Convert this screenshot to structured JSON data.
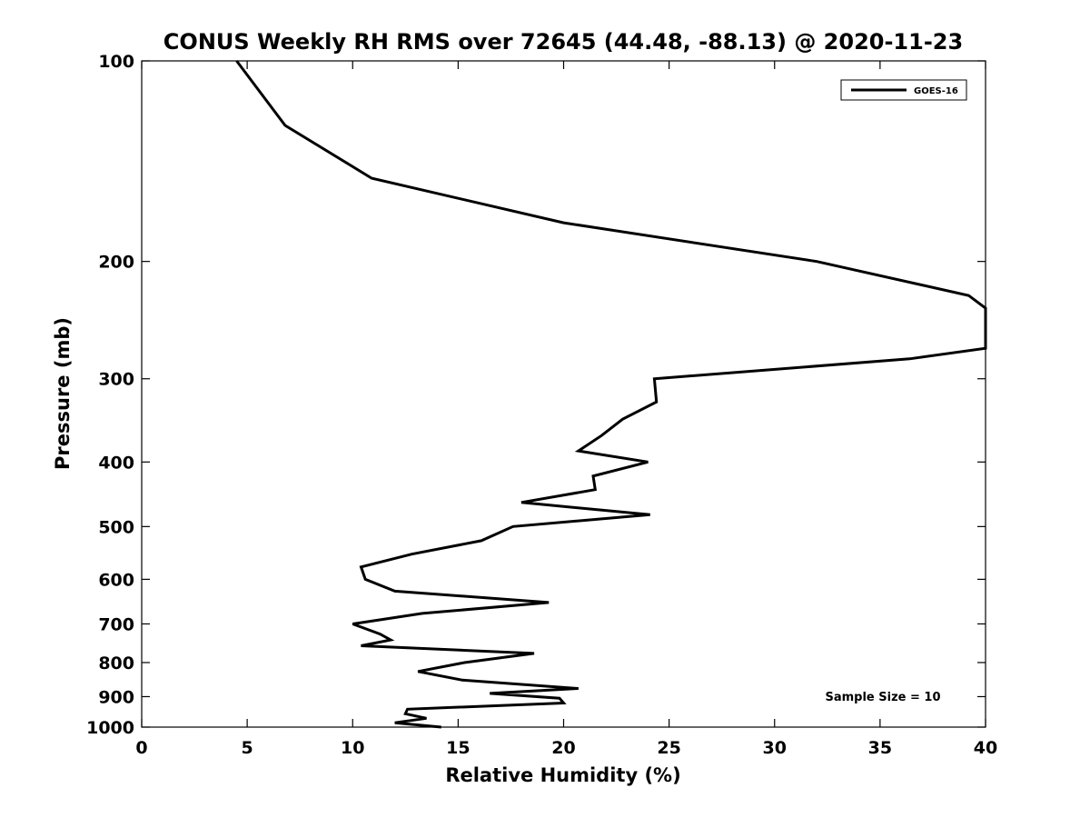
{
  "chart_data": {
    "type": "line",
    "title": "CONUS Weekly RH RMS over 72645 (44.48, -88.13) @ 2020-11-23",
    "xlabel": "Relative Humidity (%)",
    "ylabel": "Pressure (mb)",
    "xlim": [
      0,
      40
    ],
    "ylim": [
      1000,
      100
    ],
    "y_scale": "log",
    "y_reversed": true,
    "grid": false,
    "legend_position": "top-right",
    "x_ticks": [
      "0",
      "5",
      "10",
      "15",
      "20",
      "25",
      "30",
      "35",
      "40"
    ],
    "y_ticks": [
      "100",
      "200",
      "300",
      "400",
      "500",
      "600",
      "700",
      "800",
      "900",
      "1000"
    ],
    "series": [
      {
        "name": "GOES-16",
        "color": "#000000",
        "points": [
          [
            4.5,
            100
          ],
          [
            6.8,
            125
          ],
          [
            10.9,
            150
          ],
          [
            20.0,
            175
          ],
          [
            32.0,
            200
          ],
          [
            39.2,
            225
          ],
          [
            40.0,
            235
          ],
          [
            40.0,
            270
          ],
          [
            36.4,
            280
          ],
          [
            24.3,
            300
          ],
          [
            24.4,
            325
          ],
          [
            22.8,
            345
          ],
          [
            21.8,
            365
          ],
          [
            20.7,
            385
          ],
          [
            24.0,
            400
          ],
          [
            21.4,
            420
          ],
          [
            21.5,
            440
          ],
          [
            18.0,
            460
          ],
          [
            24.1,
            480
          ],
          [
            17.6,
            500
          ],
          [
            16.1,
            525
          ],
          [
            12.8,
            550
          ],
          [
            10.4,
            575
          ],
          [
            10.6,
            600
          ],
          [
            12.0,
            625
          ],
          [
            19.3,
            650
          ],
          [
            13.3,
            675
          ],
          [
            10.0,
            700
          ],
          [
            11.3,
            725
          ],
          [
            11.8,
            740
          ],
          [
            10.4,
            755
          ],
          [
            18.6,
            775
          ],
          [
            15.3,
            800
          ],
          [
            13.1,
            825
          ],
          [
            15.2,
            850
          ],
          [
            20.7,
            875
          ],
          [
            16.5,
            890
          ],
          [
            19.8,
            905
          ],
          [
            20.0,
            920
          ],
          [
            12.6,
            940
          ],
          [
            12.5,
            955
          ],
          [
            13.5,
            970
          ],
          [
            12.0,
            985
          ],
          [
            14.2,
            1000
          ]
        ]
      }
    ],
    "annotations": [
      "Sample Size = 10"
    ]
  },
  "colors": {
    "line": "#000000",
    "background": "#ffffff"
  }
}
